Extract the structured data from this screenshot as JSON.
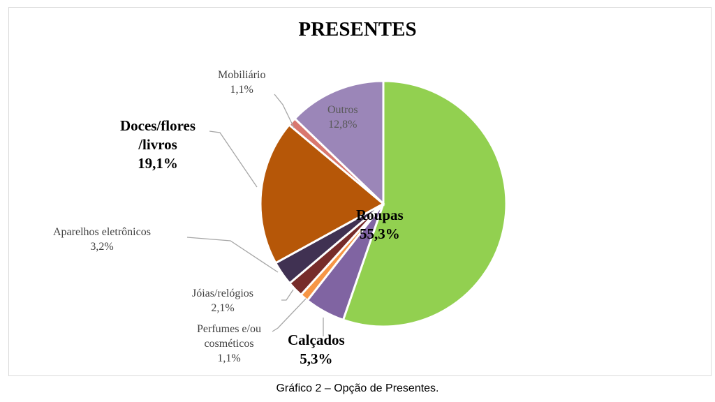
{
  "chart_data": {
    "type": "pie",
    "title": "PRESENTES",
    "slices": [
      {
        "label": "Roupas",
        "value": 55.3,
        "value_label": "55,3%",
        "color": "#92d050"
      },
      {
        "label": "Calçados",
        "value": 5.3,
        "value_label": "5,3%",
        "color": "#8064a2"
      },
      {
        "label": "Perfumes e/ou cosméticos",
        "value": 1.1,
        "value_label": "1,1%",
        "color": "#f79646"
      },
      {
        "label": "Jóias/relógios",
        "value": 2.1,
        "value_label": "2,1%",
        "color": "#772c2a"
      },
      {
        "label": "Aparelhos eletrônicos",
        "value": 3.2,
        "value_label": "3,2%",
        "color": "#403152"
      },
      {
        "label": "Doces/flores /livros",
        "value": 19.1,
        "value_label": "19,1%",
        "color": "#b65708"
      },
      {
        "label": "Mobiliário",
        "value": 1.1,
        "value_label": "1,1%",
        "color": "#d9786f"
      },
      {
        "label": "Outros",
        "value": 12.8,
        "value_label": "12,8%",
        "color": "#9b86b8"
      }
    ],
    "start_angle": "top",
    "direction": "clockwise",
    "legend": "none"
  },
  "caption": "Gráfico 2  – Opção de Presentes."
}
